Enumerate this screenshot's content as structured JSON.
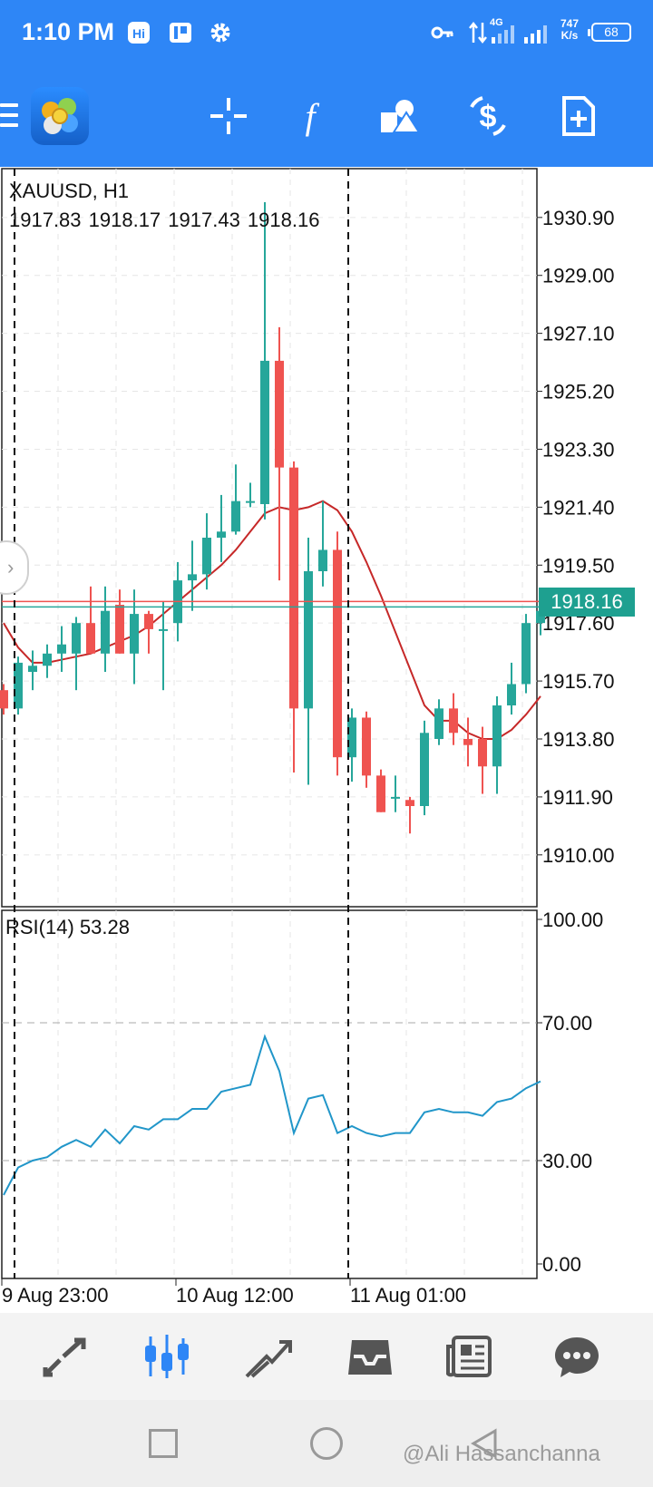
{
  "status_bar": {
    "time": "1:10 PM",
    "net_speed_value": "747",
    "net_speed_unit": "K/s",
    "network_type": "4G",
    "battery": "68",
    "icons": [
      "hi-icon",
      "parking-icon",
      "settings-icon",
      "vpn-key-icon",
      "data-transfer-icon",
      "signal-icon",
      "signal-icon"
    ]
  },
  "toolbar": {
    "items": [
      "menu-icon",
      "app-logo",
      "crosshair-icon",
      "indicators-icon",
      "objects-icon",
      "symbol-icon",
      "new-order-icon"
    ]
  },
  "chart": {
    "symbol_timeframe": "XAUUSD, H1",
    "ohlc": "1917.83 1918.17 1917.43 1918.16",
    "current_price": "1918.16",
    "price_axis": [
      "1930.90",
      "1929.00",
      "1927.10",
      "1925.20",
      "1923.30",
      "1921.40",
      "1919.50",
      "1917.60",
      "1915.70",
      "1913.80",
      "1911.90",
      "1910.00"
    ],
    "time_axis": [
      "9 Aug 23:00",
      "10 Aug 12:00",
      "11 Aug 01:00"
    ],
    "bull_color": "#26a69a",
    "bear_color": "#ef5350",
    "ma_color": "#c62828",
    "rsi_color": "#2196c9"
  },
  "rsi": {
    "label": "RSI(14) 53.28",
    "axis": [
      "100.00",
      "70.00",
      "30.00",
      "0.00"
    ]
  },
  "chart_data": [
    {
      "type": "candlestick",
      "symbol": "XAUUSD",
      "timeframe": "H1",
      "candles": [
        {
          "o": 1915.4,
          "h": 1915.6,
          "l": 1914.6,
          "c": 1914.8
        },
        {
          "o": 1914.8,
          "h": 1916.5,
          "l": 1914.6,
          "c": 1916.3
        },
        {
          "o": 1916.0,
          "h": 1916.7,
          "l": 1915.4,
          "c": 1916.2
        },
        {
          "o": 1916.2,
          "h": 1916.9,
          "l": 1915.8,
          "c": 1916.6
        },
        {
          "o": 1916.6,
          "h": 1917.5,
          "l": 1916.0,
          "c": 1916.9
        },
        {
          "o": 1916.6,
          "h": 1917.8,
          "l": 1915.4,
          "c": 1917.6
        },
        {
          "o": 1917.6,
          "h": 1918.8,
          "l": 1916.6,
          "c": 1916.6
        },
        {
          "o": 1916.6,
          "h": 1918.8,
          "l": 1916.0,
          "c": 1918.0
        },
        {
          "o": 1918.2,
          "h": 1918.7,
          "l": 1916.6,
          "c": 1916.6
        },
        {
          "o": 1916.6,
          "h": 1918.7,
          "l": 1915.6,
          "c": 1917.9
        },
        {
          "o": 1917.9,
          "h": 1918.0,
          "l": 1916.6,
          "c": 1917.4
        },
        {
          "o": 1917.4,
          "h": 1918.3,
          "l": 1915.4,
          "c": 1917.4
        },
        {
          "o": 1917.6,
          "h": 1919.6,
          "l": 1917.0,
          "c": 1919.0
        },
        {
          "o": 1919.0,
          "h": 1920.3,
          "l": 1918.0,
          "c": 1919.2
        },
        {
          "o": 1919.2,
          "h": 1921.2,
          "l": 1918.7,
          "c": 1920.4
        },
        {
          "o": 1920.4,
          "h": 1921.8,
          "l": 1919.6,
          "c": 1920.6
        },
        {
          "o": 1920.6,
          "h": 1922.8,
          "l": 1920.5,
          "c": 1921.6
        },
        {
          "o": 1921.6,
          "h": 1922.2,
          "l": 1921.4,
          "c": 1921.6
        },
        {
          "o": 1921.5,
          "h": 1931.4,
          "l": 1921.0,
          "c": 1926.2
        },
        {
          "o": 1926.2,
          "h": 1927.3,
          "l": 1919.0,
          "c": 1922.7
        },
        {
          "o": 1922.7,
          "h": 1922.9,
          "l": 1912.7,
          "c": 1914.8
        },
        {
          "o": 1914.8,
          "h": 1920.4,
          "l": 1912.3,
          "c": 1919.3
        },
        {
          "o": 1919.3,
          "h": 1921.6,
          "l": 1918.8,
          "c": 1920.0
        },
        {
          "o": 1920.0,
          "h": 1920.6,
          "l": 1912.6,
          "c": 1913.2
        },
        {
          "o": 1913.2,
          "h": 1914.8,
          "l": 1912.4,
          "c": 1914.5
        },
        {
          "o": 1914.5,
          "h": 1914.7,
          "l": 1912.2,
          "c": 1912.6
        },
        {
          "o": 1912.6,
          "h": 1912.8,
          "l": 1911.4,
          "c": 1911.4
        },
        {
          "o": 1911.9,
          "h": 1912.6,
          "l": 1911.4,
          "c": 1911.9
        },
        {
          "o": 1911.8,
          "h": 1911.9,
          "l": 1910.7,
          "c": 1911.6
        },
        {
          "o": 1911.6,
          "h": 1914.4,
          "l": 1911.3,
          "c": 1914.0
        },
        {
          "o": 1913.8,
          "h": 1915.1,
          "l": 1913.6,
          "c": 1914.8
        },
        {
          "o": 1914.8,
          "h": 1915.3,
          "l": 1913.6,
          "c": 1914.0
        },
        {
          "o": 1913.8,
          "h": 1914.5,
          "l": 1912.9,
          "c": 1913.6
        },
        {
          "o": 1913.8,
          "h": 1914.2,
          "l": 1912.0,
          "c": 1912.9
        },
        {
          "o": 1912.9,
          "h": 1915.2,
          "l": 1912.0,
          "c": 1914.9
        },
        {
          "o": 1914.9,
          "h": 1916.3,
          "l": 1914.6,
          "c": 1915.6
        },
        {
          "o": 1915.6,
          "h": 1917.9,
          "l": 1915.3,
          "c": 1917.6
        },
        {
          "o": 1917.6,
          "h": 1918.3,
          "l": 1917.2,
          "c": 1918.0
        }
      ],
      "moving_average": [
        1917.6,
        1916.8,
        1916.3,
        1916.3,
        1916.4,
        1916.5,
        1916.6,
        1916.8,
        1917.0,
        1917.2,
        1917.5,
        1917.9,
        1918.3,
        1918.7,
        1919.1,
        1919.5,
        1920.0,
        1920.6,
        1921.2,
        1921.4,
        1921.3,
        1921.4,
        1921.6,
        1921.3,
        1920.6,
        1919.6,
        1918.5,
        1917.3,
        1916.1,
        1914.9,
        1914.4,
        1914.4,
        1914.0,
        1913.8,
        1913.8,
        1914.1,
        1914.6,
        1915.2
      ],
      "price_axis_range": [
        1908.3,
        1932.5
      ],
      "x_labels": [
        "9 Aug 23:00",
        "10 Aug 12:00",
        "11 Aug 01:00"
      ]
    },
    {
      "type": "line",
      "title": "RSI(14) 53.28",
      "values": [
        20,
        28,
        30,
        31,
        34,
        36,
        34,
        39,
        35,
        40,
        39,
        42,
        42,
        45,
        45,
        50,
        51,
        52,
        66,
        56,
        38,
        48,
        49,
        38,
        40,
        38,
        37,
        38,
        38,
        44,
        45,
        44,
        44,
        43,
        47,
        48,
        51,
        53
      ],
      "ylim": [
        0,
        100
      ],
      "levels": [
        30,
        70
      ]
    }
  ],
  "bottom_nav": {
    "items": [
      "quotes-icon",
      "chart-icon",
      "trade-icon",
      "history-icon",
      "news-icon",
      "messages-icon"
    ]
  },
  "system_nav": {
    "watermark": "@Ali Hassanchanna"
  }
}
